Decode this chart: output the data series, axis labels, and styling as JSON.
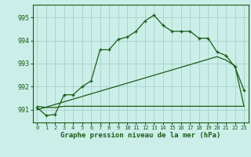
{
  "title": "Graphe pression niveau de la mer (hPa)",
  "bg_color": "#cceee8",
  "grid_color": "#aad4ce",
  "line_color": "#1a5c1a",
  "x_ticks": [
    0,
    1,
    2,
    3,
    4,
    5,
    6,
    7,
    8,
    9,
    10,
    11,
    12,
    13,
    14,
    15,
    16,
    17,
    18,
    19,
    20,
    21,
    22,
    23
  ],
  "y_ticks": [
    991,
    992,
    993,
    994,
    995
  ],
  "ylim": [
    990.45,
    995.55
  ],
  "xlim": [
    -0.5,
    23.5
  ],
  "curve1_x": [
    0,
    1,
    2,
    3,
    4,
    5,
    6,
    7,
    8,
    9,
    10,
    11,
    12,
    13,
    14,
    15,
    16,
    17,
    18,
    19,
    20,
    21,
    22,
    23
  ],
  "curve1_y": [
    991.1,
    990.75,
    990.8,
    991.65,
    991.65,
    992.0,
    992.25,
    993.6,
    993.6,
    994.05,
    994.15,
    994.4,
    994.85,
    995.1,
    994.65,
    994.4,
    994.4,
    994.4,
    994.1,
    994.1,
    993.5,
    993.35,
    992.85,
    991.85
  ],
  "curve2_x": [
    0,
    1,
    2,
    3,
    4,
    16,
    23
  ],
  "curve2_y": [
    991.15,
    991.1,
    991.1,
    991.15,
    991.15,
    991.15,
    991.15
  ],
  "curve3_x": [
    0,
    20,
    21,
    22,
    23
  ],
  "curve3_y": [
    991.0,
    993.3,
    993.15,
    992.9,
    991.15
  ],
  "title_fontsize": 6.5,
  "tick_fontsize": 5.0,
  "ytick_fontsize": 6.0
}
